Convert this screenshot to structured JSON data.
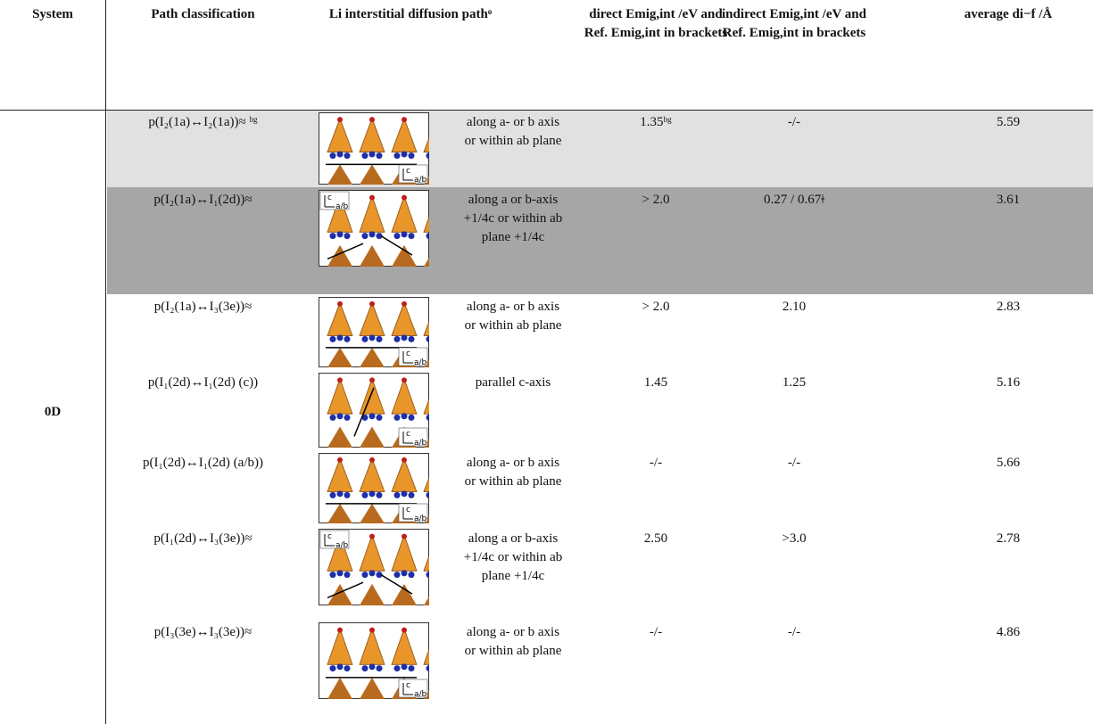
{
  "table": {
    "header": [
      "System",
      "Path classification",
      "Li interstitial diffusion pathᵒ",
      "direct Emig,int /eV and Ref. Emig,int in brackets",
      "indirect Emig,int /eV and Ref. Emig,int in brackets",
      "average di−f /Å"
    ],
    "system": "0D",
    "rows": [
      {
        "path": "p(I₂(1a)↔I₂(1a))≈ ᵇᵍ",
        "figure_labels": [
          "c",
          "a/b"
        ],
        "direction": "along a- or b axis or within ab plane",
        "direct": "1.35ᵇᵍ",
        "indirect": "-/-",
        "average": "5.59"
      },
      {
        "path": "p(I₂(1a)↔I₁(2d))≈",
        "figure_labels": [
          "c",
          "a/b"
        ],
        "direction": "along a or b-axis +1/4c or within ab plane +1/4c",
        "direct": "> 2.0",
        "indirect": "0.27 / 0.67ǂ",
        "average": "3.61"
      },
      {
        "path": "p(I₂(1a)↔I₃(3e))≈",
        "figure_labels": [
          "c",
          "a/b"
        ],
        "direction": "along a- or b axis or within ab plane",
        "direct": "> 2.0",
        "indirect": "2.10",
        "average": "2.83"
      },
      {
        "path": "p(I₁(2d)↔I₁(2d) (c))",
        "figure_labels": [
          "c",
          "a/b"
        ],
        "direction": "parallel c-axis",
        "direct": "1.45",
        "indirect": "1.25",
        "average": "5.16"
      },
      {
        "path": "p(I₁(2d)↔I₁(2d) (a/b))",
        "figure_labels": [
          "c",
          "a/b"
        ],
        "direction": "along a- or b axis or within ab plane",
        "direct": "-/-",
        "indirect": "-/-",
        "average": "5.66"
      },
      {
        "path": "p(I₁(2d)↔I₃(3e))≈",
        "figure_labels": [
          "c",
          "a/b"
        ],
        "direction": "along a or b-axis +1/4c or within ab plane +1/4c",
        "direct": "2.50",
        "indirect": ">3.0",
        "average": "2.78"
      },
      {
        "path": "p(I₃(3e)↔I₃(3e))≈",
        "figure_labels": [
          "c",
          "a/b"
        ],
        "direction": "along a- or b axis or within ab plane",
        "direct": "-/-",
        "indirect": "-/-",
        "average": "4.86"
      }
    ]
  }
}
